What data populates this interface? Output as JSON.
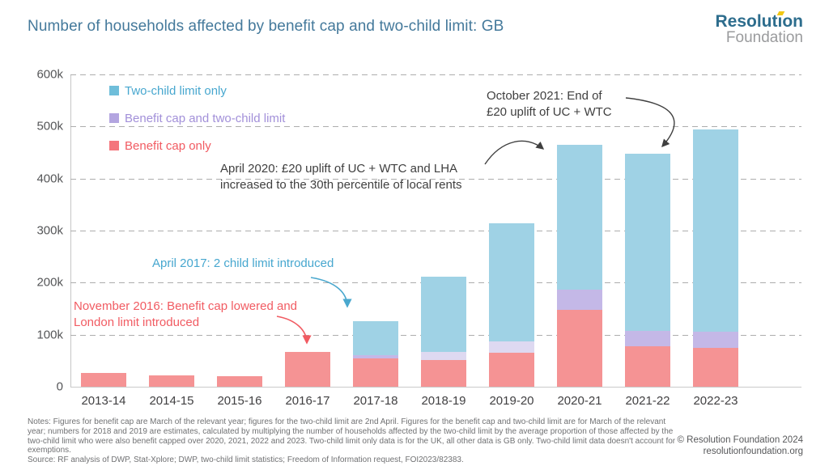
{
  "header": {
    "title": "Number of households affected by benefit cap and two-child limit: GB",
    "logo": {
      "line1": "Resolution",
      "line2": "Foundation",
      "accent_color": "#f2c713"
    }
  },
  "chart_data": {
    "type": "bar",
    "stacked": true,
    "title": "Number of households affected by benefit cap and two-child limit: GB",
    "unit": "thousands of households",
    "categories": [
      "2013-14",
      "2014-15",
      "2015-16",
      "2016-17",
      "2017-18",
      "2018-19",
      "2019-20",
      "2020-21",
      "2021-22",
      "2022-23"
    ],
    "series": [
      {
        "name": "Benefit cap only",
        "color": "#f59394",
        "legend_swatch": "#f4767d",
        "text_color": "#f15b62",
        "values": [
          27,
          22,
          20,
          67,
          54,
          52,
          65,
          147,
          77,
          74
        ]
      },
      {
        "name": "Benefit cap and two-child limit",
        "color": "#c4b8e7",
        "estimate_color": "#ded9f1",
        "legend_swatch": "#b3a5e0",
        "text_color": "#a290d9",
        "values": [
          0,
          0,
          0,
          0,
          6,
          15,
          22,
          40,
          30,
          32
        ],
        "estimated": [
          false,
          false,
          false,
          false,
          false,
          true,
          true,
          false,
          false,
          false
        ]
      },
      {
        "name": "Two-child limit only",
        "color": "#9fd2e5",
        "legend_swatch": "#6fbeda",
        "text_color": "#47a7cf",
        "values": [
          0,
          0,
          0,
          0,
          66,
          145,
          227,
          277,
          340,
          389
        ]
      }
    ],
    "stack_order_bottom_to_top": [
      0,
      1,
      2
    ],
    "legend_order": [
      2,
      1,
      0
    ],
    "y_axis": {
      "ticks": [
        "0",
        "100k",
        "200k",
        "300k",
        "400k",
        "500k",
        "600k"
      ],
      "max": 600,
      "gridlines": "dashed"
    },
    "legend_position": "top-left-inside"
  },
  "annotations": [
    {
      "id": "oct2021",
      "text": "October 2021: End of\n£20 uplift of UC + WTC",
      "color": "#3f3f3f"
    },
    {
      "id": "apr2020",
      "text": "April 2020: £20 uplift of UC + WTC and LHA\nincreased to the 30th percentile of local rents",
      "color": "#3f3f3f"
    },
    {
      "id": "apr2017",
      "text": "April 2017: 2 child limit introduced",
      "color": "#47a7cf"
    },
    {
      "id": "nov2016",
      "text": "November 2016: Benefit cap lowered and\nLondon limit introduced",
      "color": "#f15b62"
    }
  ],
  "footer": {
    "notes": "Notes: Figures for benefit cap are March of the relevant year; figures for the two-child limit are 2nd April. Figures for the benefit cap and two-child limit are for March of the relevant year; numbers for 2018 and 2019 are estimates, calculated by multiplying the number of households affected by the two-child limit by the average proportion of those affected by the two-child limit who were also benefit capped over 2020, 2021, 2022 and 2023. Two-child limit only data is for the UK, all other data is GB only. Two-child limit data doesn't account for exemptions.",
    "source": "Source: RF analysis of DWP, Stat-Xplore; DWP, two-child limit statistics; Freedom of Information request, FOI2023/82383.",
    "copyright": "© Resolution Foundation 2024",
    "website": "resolutionfoundation.org"
  }
}
